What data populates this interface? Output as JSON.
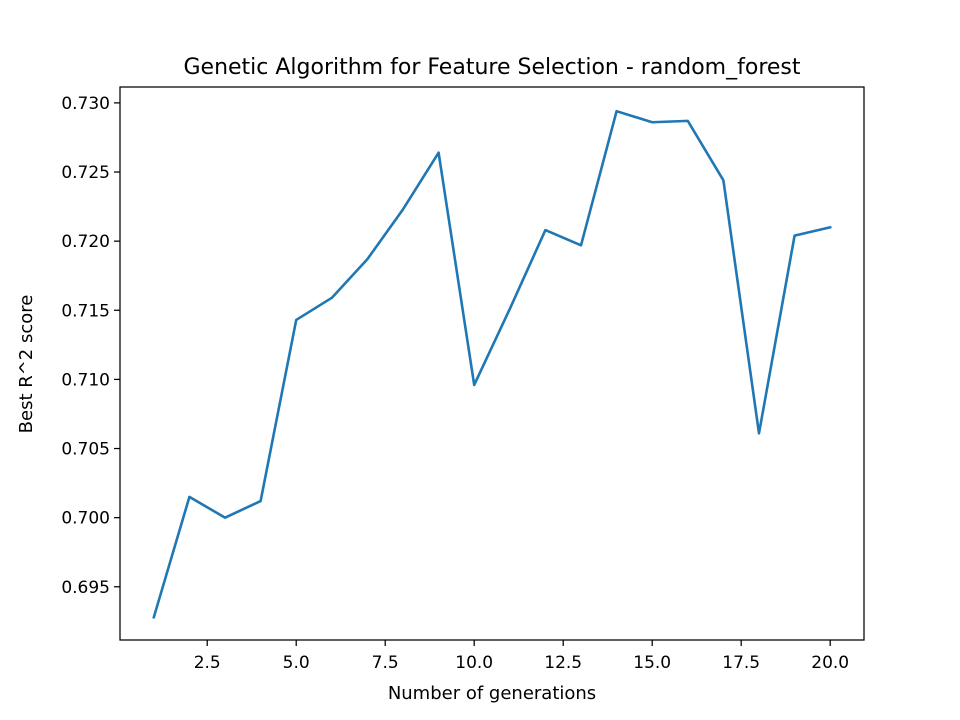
{
  "chart_data": {
    "type": "line",
    "title": "Genetic Algorithm for Feature Selection - random_forest",
    "xlabel": "Number of generations",
    "ylabel": "Best R^2 score",
    "xlim": [
      0.05,
      20.95
    ],
    "ylim": [
      0.69115,
      0.73115
    ],
    "xticks": [
      2.5,
      5.0,
      7.5,
      10.0,
      12.5,
      15.0,
      17.5,
      20.0
    ],
    "xtick_labels": [
      "2.5",
      "5.0",
      "7.5",
      "10.0",
      "12.5",
      "15.0",
      "17.5",
      "20.0"
    ],
    "yticks": [
      0.695,
      0.7,
      0.705,
      0.71,
      0.715,
      0.72,
      0.725,
      0.73
    ],
    "ytick_labels": [
      "0.695",
      "0.700",
      "0.705",
      "0.710",
      "0.715",
      "0.720",
      "0.725",
      "0.730"
    ],
    "grid": false,
    "series": [
      {
        "color": "#1f77b4",
        "x": [
          1,
          2,
          3,
          4,
          5,
          6,
          7,
          8,
          9,
          10,
          11,
          12,
          13,
          14,
          15,
          16,
          17,
          18,
          19,
          20
        ],
        "y": [
          0.6928,
          0.7015,
          0.7,
          0.7012,
          0.7143,
          0.7159,
          0.7187,
          0.7223,
          0.7264,
          0.7096,
          0.7151,
          0.7208,
          0.7197,
          0.7294,
          0.7286,
          0.7287,
          0.7244,
          0.7061,
          0.7204,
          0.721
        ]
      }
    ]
  }
}
